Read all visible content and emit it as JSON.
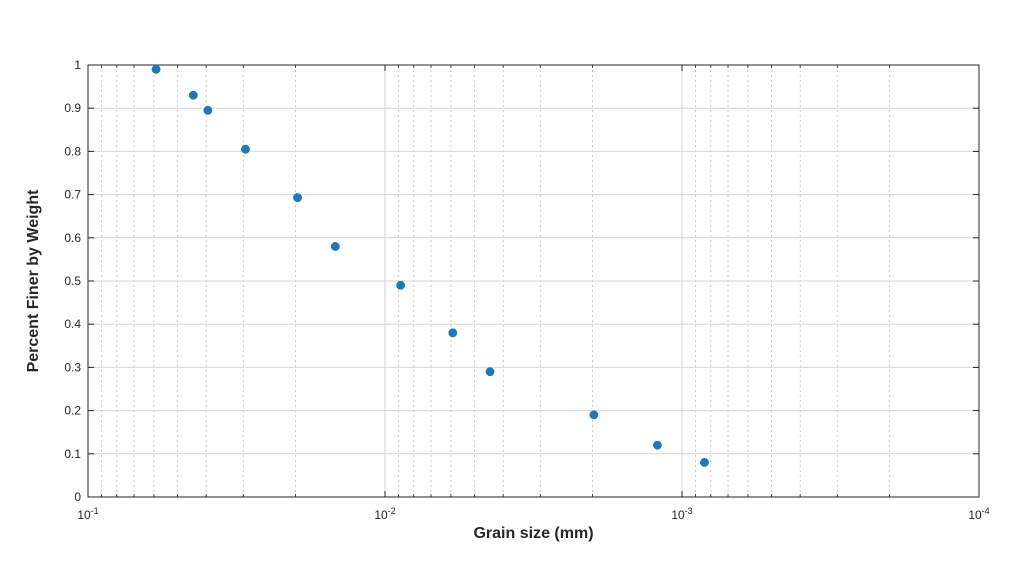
{
  "chart_data": {
    "type": "scatter",
    "title": "",
    "xlabel": "Grain size (mm)",
    "ylabel": "Percent Finer by Weight",
    "x_scale": "log",
    "x_reversed": true,
    "xlim": [
      0.1,
      0.0001
    ],
    "ylim": [
      0,
      1
    ],
    "grid": true,
    "marker_color": "#1f77b4",
    "x_ticks": [
      {
        "value": 0.1,
        "base": "10",
        "exp": "-1"
      },
      {
        "value": 0.01,
        "base": "10",
        "exp": "-2"
      },
      {
        "value": 0.001,
        "base": "10",
        "exp": "-3"
      },
      {
        "value": 0.0001,
        "base": "10",
        "exp": "-4"
      }
    ],
    "y_ticks": [
      "0",
      "0.1",
      "0.2",
      "0.3",
      "0.4",
      "0.5",
      "0.6",
      "0.7",
      "0.8",
      "0.9",
      "1"
    ],
    "points": [
      {
        "x": 0.059,
        "y": 0.99
      },
      {
        "x": 0.0442,
        "y": 0.93
      },
      {
        "x": 0.0395,
        "y": 0.895
      },
      {
        "x": 0.0295,
        "y": 0.805
      },
      {
        "x": 0.0197,
        "y": 0.693
      },
      {
        "x": 0.0147,
        "y": 0.58
      },
      {
        "x": 0.00886,
        "y": 0.49
      },
      {
        "x": 0.00591,
        "y": 0.38
      },
      {
        "x": 0.00443,
        "y": 0.29
      },
      {
        "x": 0.00198,
        "y": 0.19
      },
      {
        "x": 0.00121,
        "y": 0.12
      },
      {
        "x": 0.00084,
        "y": 0.08
      }
    ]
  }
}
